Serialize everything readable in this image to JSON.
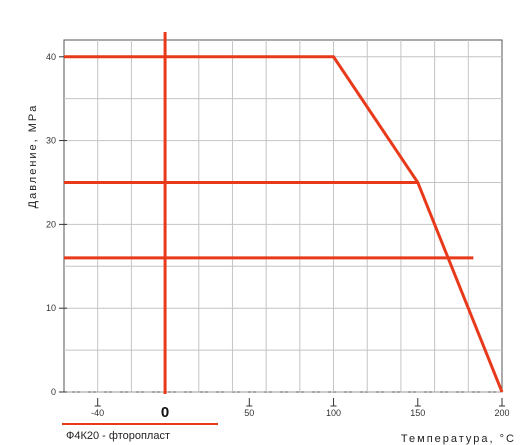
{
  "chart_data": {
    "type": "line",
    "title": "",
    "xlabel": "Температура, °C",
    "ylabel": "Давление, MPa",
    "xlim": [
      -60,
      200
    ],
    "ylim": [
      0,
      42
    ],
    "x_ticks": [
      -40,
      50,
      100,
      150,
      200
    ],
    "x_tick_labels": [
      "-40",
      "50",
      "100",
      "150",
      "200"
    ],
    "zero_marker": {
      "x": 0,
      "label": "0"
    },
    "y_ticks": [
      0,
      10,
      20,
      30,
      40
    ],
    "y_tick_labels": [
      "0",
      "10",
      "20",
      "30",
      "40"
    ],
    "grid": true,
    "series": [
      {
        "name": "Ф4К20 - фторопласт",
        "color": "#e83a1a",
        "x": [
          -60,
          100,
          150,
          200
        ],
        "y": [
          40,
          40,
          25,
          0
        ]
      }
    ],
    "reference_lines": [
      {
        "orientation": "horizontal",
        "y": 25,
        "x_from": -60,
        "x_to": 150,
        "color": "#e83a1a"
      },
      {
        "orientation": "horizontal",
        "y": 16,
        "x_from": -60,
        "x_to": 183,
        "color": "#e83a1a"
      },
      {
        "orientation": "vertical",
        "x": 0,
        "color": "#e83a1a"
      }
    ],
    "legend": {
      "position": "bottom-left",
      "label": "Ф4К20 - фторопласт"
    }
  }
}
